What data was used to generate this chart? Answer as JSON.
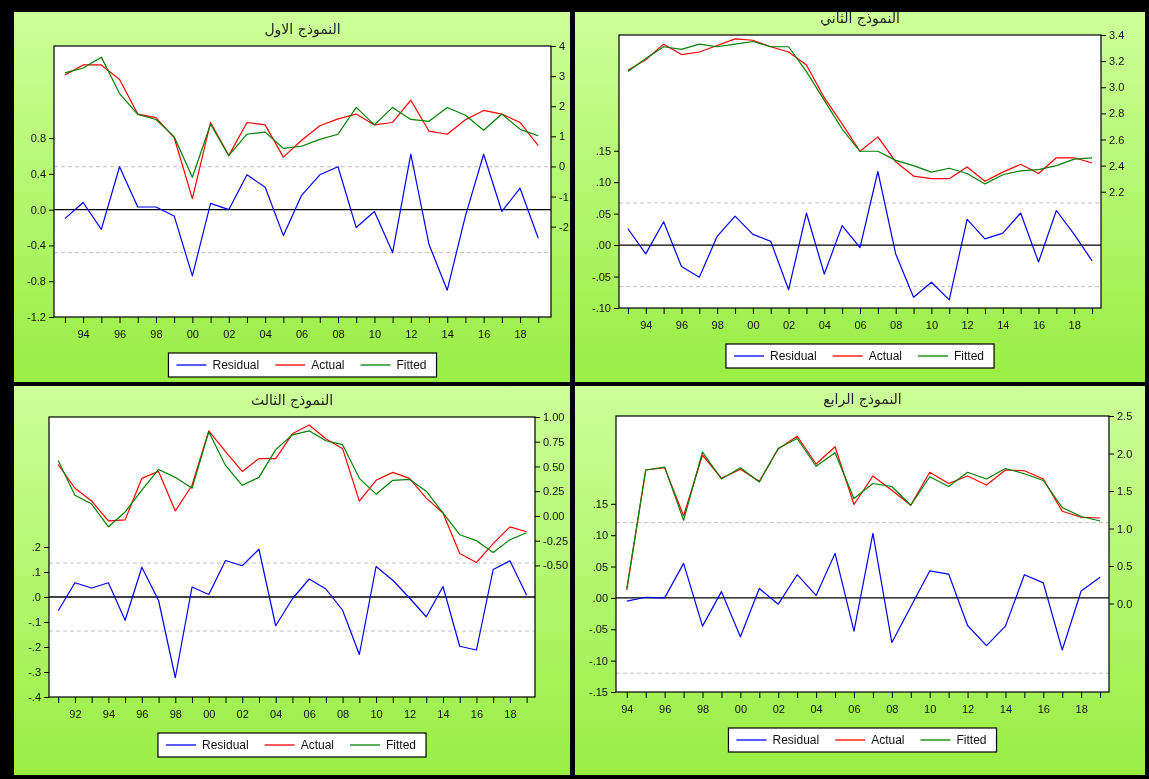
{
  "chart_data": [
    {
      "type": "line",
      "title": "النموذج الاول",
      "legend": "bottom",
      "x": [
        1993,
        1994,
        1995,
        1996,
        1997,
        1998,
        1999,
        2000,
        2001,
        2002,
        2003,
        2004,
        2005,
        2006,
        2007,
        2008,
        2009,
        2010,
        2011,
        2012,
        2013,
        2014,
        2015,
        2016,
        2017,
        2018,
        2019
      ],
      "xlim": [
        1992.4,
        2019.7
      ],
      "xticks": [
        {
          "value": 1993,
          "label": null
        },
        {
          "value": 1994,
          "label": "94"
        },
        {
          "value": 1995,
          "label": null
        },
        {
          "value": 1996,
          "label": "96"
        },
        {
          "value": 1997,
          "label": null
        },
        {
          "value": 1998,
          "label": "98"
        },
        {
          "value": 1999,
          "label": null
        },
        {
          "value": 2000,
          "label": "00"
        },
        {
          "value": 2001,
          "label": null
        },
        {
          "value": 2002,
          "label": "02"
        },
        {
          "value": 2003,
          "label": null
        },
        {
          "value": 2004,
          "label": "04"
        },
        {
          "value": 2005,
          "label": null
        },
        {
          "value": 2006,
          "label": "06"
        },
        {
          "value": 2007,
          "label": null
        },
        {
          "value": 2008,
          "label": "08"
        },
        {
          "value": 2009,
          "label": null
        },
        {
          "value": 2010,
          "label": "10"
        },
        {
          "value": 2011,
          "label": null
        },
        {
          "value": 2012,
          "label": "12"
        },
        {
          "value": 2013,
          "label": null
        },
        {
          "value": 2014,
          "label": "14"
        },
        {
          "value": 2015,
          "label": null
        },
        {
          "value": 2016,
          "label": "16"
        },
        {
          "value": 2017,
          "label": null
        },
        {
          "value": 2018,
          "label": "18"
        },
        {
          "value": 2019,
          "label": null
        }
      ],
      "ylim": [
        -1.2,
        1.83
      ],
      "yticks": [
        {
          "value": 0.8,
          "label": "0.8"
        },
        {
          "value": 0.4,
          "label": "0.4"
        },
        {
          "value": 0,
          "label": "0.0"
        },
        {
          "value": -0.4,
          "label": "-0.4"
        },
        {
          "value": -0.8,
          "label": "-0.8"
        },
        {
          "value": -1.2,
          "label": "-1.2"
        }
      ],
      "y2lim": [
        -5,
        4
      ],
      "y2ticks": [
        4,
        3,
        2,
        1,
        0,
        -1,
        {
          "value": -2,
          "label": "-2"
        }
      ],
      "ref_lines": [
        {
          "axis": "y",
          "value": 0,
          "color": "#000000",
          "line_style": "solid"
        },
        {
          "axis": "y",
          "value": 0.48,
          "color": "#c0c0c0",
          "line_style": "dashed"
        },
        {
          "axis": "y",
          "value": -0.48,
          "color": "#c0c0c0",
          "line_style": "dashed"
        }
      ],
      "series": [
        {
          "name": "Residual",
          "color": "#0000ff",
          "values": [
            -0.1,
            0.08,
            -0.22,
            0.48,
            0.03,
            0.03,
            -0.07,
            -0.74,
            0.07,
            0.0,
            0.39,
            0.25,
            -0.29,
            0.16,
            0.39,
            0.48,
            -0.2,
            -0.02,
            -0.48,
            0.62,
            -0.39,
            -0.9,
            -0.07,
            0.62,
            -0.02,
            0.24,
            -0.32
          ]
        },
        {
          "name": "Actual",
          "color": "#ff0000",
          "axis": "y2",
          "values": [
            3.04,
            3.37,
            3.37,
            2.89,
            1.74,
            1.62,
            0.96,
            -1.07,
            1.46,
            0.36,
            1.46,
            1.38,
            0.31,
            0.87,
            1.35,
            1.58,
            1.74,
            1.38,
            1.46,
            2.2,
            1.17,
            1.07,
            1.55,
            1.86,
            1.74,
            1.46,
            0.69
          ]
        },
        {
          "name": "Fitted",
          "color": "#008000",
          "axis": "y2",
          "values": [
            3.11,
            3.27,
            3.63,
            2.42,
            1.73,
            1.56,
            0.99,
            -0.36,
            1.4,
            0.36,
            1.07,
            1.14,
            0.6,
            0.67,
            0.9,
            1.07,
            1.96,
            1.38,
            1.96,
            1.56,
            1.5,
            1.96,
            1.7,
            1.2,
            1.74,
            1.23,
            1.02
          ]
        }
      ]
    },
    {
      "type": "line",
      "title": "النموذج الثاني",
      "legend": "bottom",
      "x": [
        1993,
        1994,
        1995,
        1996,
        1997,
        1998,
        1999,
        2000,
        2001,
        2002,
        2003,
        2004,
        2005,
        2006,
        2007,
        2008,
        2009,
        2010,
        2011,
        2012,
        2013,
        2014,
        2015,
        2016,
        2017,
        2018,
        2019
      ],
      "xlim": [
        1992.5,
        2019.5
      ],
      "xticks": [
        {
          "value": 1993,
          "label": null
        },
        {
          "value": 1994,
          "label": "94"
        },
        {
          "value": 1995,
          "label": null
        },
        {
          "value": 1996,
          "label": "96"
        },
        {
          "value": 1997,
          "label": null
        },
        {
          "value": 1998,
          "label": "98"
        },
        {
          "value": 1999,
          "label": null
        },
        {
          "value": 2000,
          "label": "00"
        },
        {
          "value": 2001,
          "label": null
        },
        {
          "value": 2002,
          "label": "02"
        },
        {
          "value": 2003,
          "label": null
        },
        {
          "value": 2004,
          "label": "04"
        },
        {
          "value": 2005,
          "label": null
        },
        {
          "value": 2006,
          "label": "06"
        },
        {
          "value": 2007,
          "label": null
        },
        {
          "value": 2008,
          "label": "08"
        },
        {
          "value": 2009,
          "label": null
        },
        {
          "value": 2010,
          "label": "10"
        },
        {
          "value": 2011,
          "label": null
        },
        {
          "value": 2012,
          "label": "12"
        },
        {
          "value": 2013,
          "label": null
        },
        {
          "value": 2014,
          "label": "14"
        },
        {
          "value": 2015,
          "label": null
        },
        {
          "value": 2016,
          "label": "16"
        },
        {
          "value": 2017,
          "label": null
        },
        {
          "value": 2018,
          "label": "18"
        },
        {
          "value": 2019,
          "label": null
        }
      ],
      "ylim": [
        -0.1,
        0.334
      ],
      "yticks": [
        {
          "value": 0.15,
          "label": ".15"
        },
        {
          "value": 0.1,
          "label": ".10"
        },
        {
          "value": 0.05,
          "label": ".05"
        },
        {
          "value": 0,
          "label": ".00"
        },
        {
          "value": -0.05,
          "label": "-.05"
        },
        {
          "value": -0.1,
          "label": "-.10"
        }
      ],
      "y2lim": [
        1.31,
        3.4
      ],
      "y2ticks": [
        {
          "value": 3.4,
          "label": "3.4"
        },
        {
          "value": 3.2,
          "label": "3.2"
        },
        {
          "value": 3.0,
          "label": "3.0"
        },
        {
          "value": 2.8,
          "label": "2.8"
        },
        {
          "value": 2.6,
          "label": "2.6"
        },
        {
          "value": 2.4,
          "label": "2.4"
        },
        {
          "value": 2.2,
          "label": "2.2"
        }
      ],
      "ref_lines": [
        {
          "axis": "y",
          "value": 0,
          "color": "#000000",
          "line_style": "solid"
        },
        {
          "axis": "y",
          "value": 0.067,
          "color": "#c0c0c0",
          "line_style": "dashed"
        },
        {
          "axis": "y",
          "value": -0.066,
          "color": "#c0c0c0",
          "line_style": "dashed"
        }
      ],
      "series": [
        {
          "name": "Residual",
          "color": "#0000ff",
          "values": [
            0.026,
            -0.014,
            0.037,
            -0.034,
            -0.051,
            0.014,
            0.046,
            0.017,
            0.006,
            -0.071,
            0.051,
            -0.046,
            0.031,
            -0.004,
            0.117,
            -0.014,
            -0.083,
            -0.059,
            -0.087,
            0.041,
            0.01,
            0.019,
            0.051,
            -0.027,
            0.055,
            0.017,
            -0.025
          ]
        },
        {
          "name": "Actual",
          "color": "#ff0000",
          "axis": "y2",
          "values": [
            3.13,
            3.21,
            3.33,
            3.25,
            3.27,
            3.32,
            3.37,
            3.36,
            3.31,
            3.27,
            3.17,
            2.92,
            2.72,
            2.51,
            2.62,
            2.43,
            2.32,
            2.3,
            2.3,
            2.39,
            2.28,
            2.35,
            2.41,
            2.34,
            2.46,
            2.46,
            2.42
          ]
        },
        {
          "name": "Fitted",
          "color": "#008000",
          "axis": "y2",
          "values": [
            3.12,
            3.22,
            3.31,
            3.29,
            3.33,
            3.31,
            3.33,
            3.35,
            3.31,
            3.31,
            3.12,
            2.9,
            2.68,
            2.51,
            2.51,
            2.44,
            2.4,
            2.35,
            2.38,
            2.34,
            2.26,
            2.33,
            2.36,
            2.37,
            2.4,
            2.45,
            2.46
          ]
        }
      ]
    },
    {
      "type": "line",
      "title": "النموذج الثالث",
      "legend": "bottom",
      "x": [
        1991,
        1992,
        1993,
        1994,
        1995,
        1996,
        1997,
        1998,
        1999,
        2000,
        2001,
        2002,
        2003,
        2004,
        2005,
        2006,
        2007,
        2008,
        2009,
        2010,
        2011,
        2012,
        2013,
        2014,
        2015,
        2016,
        2017,
        2018,
        2019
      ],
      "xlim": [
        1990.45,
        2019.5
      ],
      "xticks": [
        {
          "value": 1991,
          "label": null
        },
        {
          "value": 1992,
          "label": "92"
        },
        {
          "value": 1993,
          "label": null
        },
        {
          "value": 1994,
          "label": "94"
        },
        {
          "value": 1995,
          "label": null
        },
        {
          "value": 1996,
          "label": "96"
        },
        {
          "value": 1997,
          "label": null
        },
        {
          "value": 1998,
          "label": "98"
        },
        {
          "value": 1999,
          "label": null
        },
        {
          "value": 2000,
          "label": "00"
        },
        {
          "value": 2001,
          "label": null
        },
        {
          "value": 2002,
          "label": "02"
        },
        {
          "value": 2003,
          "label": null
        },
        {
          "value": 2004,
          "label": "04"
        },
        {
          "value": 2005,
          "label": null
        },
        {
          "value": 2006,
          "label": "06"
        },
        {
          "value": 2007,
          "label": null
        },
        {
          "value": 2008,
          "label": "08"
        },
        {
          "value": 2009,
          "label": null
        },
        {
          "value": 2010,
          "label": "10"
        },
        {
          "value": 2011,
          "label": null
        },
        {
          "value": 2012,
          "label": "12"
        },
        {
          "value": 2013,
          "label": null
        },
        {
          "value": 2014,
          "label": "14"
        },
        {
          "value": 2015,
          "label": null
        },
        {
          "value": 2016,
          "label": "16"
        },
        {
          "value": 2017,
          "label": null
        },
        {
          "value": 2018,
          "label": "18"
        },
        {
          "value": 2019,
          "label": null
        }
      ],
      "ylim": [
        -0.4,
        0.72
      ],
      "yticks": [
        {
          "value": 0.2,
          "label": ".2"
        },
        {
          "value": 0.1,
          "label": ".1"
        },
        {
          "value": 0,
          "label": ".0"
        },
        {
          "value": -0.1,
          "label": "-.1"
        },
        {
          "value": -0.2,
          "label": "-.2"
        },
        {
          "value": -0.3,
          "label": "-.3"
        },
        {
          "value": -0.4,
          "label": "-.4"
        }
      ],
      "y2lim": [
        -1.83,
        1.0
      ],
      "y2ticks": [
        {
          "value": 1,
          "label": "1.00"
        },
        {
          "value": 0.75,
          "label": "0.75"
        },
        {
          "value": 0.5,
          "label": "0.50"
        },
        {
          "value": 0.25,
          "label": "0.25"
        },
        {
          "value": 0,
          "label": "0.00"
        },
        {
          "value": -0.25,
          "label": "-0.25"
        },
        {
          "value": -0.5,
          "label": "-0.50"
        }
      ],
      "ref_lines": [
        {
          "axis": "y",
          "value": 0,
          "color": "#000000",
          "line_style": "solid"
        },
        {
          "axis": "y",
          "value": 0.136,
          "color": "#c0c0c0",
          "line_style": "dashed"
        },
        {
          "axis": "y",
          "value": -0.136,
          "color": "#c0c0c0",
          "line_style": "dashed"
        }
      ],
      "series": [
        {
          "name": "Residual",
          "color": "#0000ff",
          "values": [
            -0.055,
            0.057,
            0.036,
            0.057,
            -0.093,
            0.119,
            -0.014,
            -0.323,
            0.04,
            0.01,
            0.146,
            0.125,
            0.191,
            -0.115,
            -0.007,
            0.072,
            0.032,
            -0.053,
            -0.23,
            0.122,
            0.067,
            -0.004,
            -0.079,
            0.042,
            -0.197,
            -0.212,
            0.11,
            0.145,
            0.007
          ]
        },
        {
          "name": "Actual",
          "color": "#ff0000",
          "axis": "y2",
          "values": [
            0.52,
            0.28,
            0.15,
            -0.05,
            -0.04,
            0.38,
            0.45,
            0.05,
            0.31,
            0.86,
            0.65,
            0.45,
            0.58,
            0.58,
            0.83,
            0.92,
            0.78,
            0.68,
            0.15,
            0.36,
            0.44,
            0.38,
            0.18,
            0.03,
            -0.38,
            -0.47,
            -0.28,
            -0.11,
            -0.16
          ]
        },
        {
          "name": "Fitted",
          "color": "#008000",
          "axis": "y2",
          "values": [
            0.56,
            0.21,
            0.12,
            -0.11,
            0.04,
            0.26,
            0.47,
            0.39,
            0.28,
            0.85,
            0.51,
            0.31,
            0.39,
            0.67,
            0.82,
            0.86,
            0.76,
            0.72,
            0.38,
            0.22,
            0.36,
            0.37,
            0.25,
            0.03,
            -0.19,
            -0.25,
            -0.37,
            -0.24,
            -0.17
          ]
        }
      ]
    },
    {
      "type": "line",
      "title": "النموذج الرابع",
      "legend": "bottom",
      "x": [
        1994,
        1995,
        1996,
        1997,
        1998,
        1999,
        2000,
        2001,
        2002,
        2003,
        2004,
        2005,
        2006,
        2007,
        2008,
        2009,
        2010,
        2011,
        2012,
        2013,
        2014,
        2015,
        2016,
        2017,
        2018,
        2019
      ],
      "xlim": [
        1993.43,
        2019.47
      ],
      "xticks": [
        {
          "value": 1994,
          "label": "94"
        },
        {
          "value": 1995,
          "label": null
        },
        {
          "value": 1996,
          "label": "96"
        },
        {
          "value": 1997,
          "label": null
        },
        {
          "value": 1998,
          "label": "98"
        },
        {
          "value": 1999,
          "label": null
        },
        {
          "value": 2000,
          "label": "00"
        },
        {
          "value": 2001,
          "label": null
        },
        {
          "value": 2002,
          "label": "02"
        },
        {
          "value": 2003,
          "label": null
        },
        {
          "value": 2004,
          "label": "04"
        },
        {
          "value": 2005,
          "label": null
        },
        {
          "value": 2006,
          "label": "06"
        },
        {
          "value": 2007,
          "label": null
        },
        {
          "value": 2008,
          "label": "08"
        },
        {
          "value": 2009,
          "label": null
        },
        {
          "value": 2010,
          "label": "10"
        },
        {
          "value": 2011,
          "label": null
        },
        {
          "value": 2012,
          "label": "12"
        },
        {
          "value": 2013,
          "label": null
        },
        {
          "value": 2014,
          "label": "14"
        },
        {
          "value": 2015,
          "label": null
        },
        {
          "value": 2016,
          "label": "16"
        },
        {
          "value": 2017,
          "label": null
        },
        {
          "value": 2018,
          "label": "18"
        },
        {
          "value": 2019,
          "label": null
        }
      ],
      "ylim": [
        -0.15,
        0.29
      ],
      "yticks": [
        {
          "value": 0.15,
          "label": ".15"
        },
        {
          "value": 0.1,
          "label": ".10"
        },
        {
          "value": 0.05,
          "label": ".05"
        },
        {
          "value": 0,
          "label": ".00"
        },
        {
          "value": -0.05,
          "label": "-.05"
        },
        {
          "value": -0.1,
          "label": "-.10"
        },
        {
          "value": -0.15,
          "label": "-.15"
        }
      ],
      "y2lim": [
        -1.18,
        2.5
      ],
      "y2ticks": [
        {
          "value": 2.5,
          "label": "2.5"
        },
        {
          "value": 2,
          "label": "2.0"
        },
        {
          "value": 1.5,
          "label": "1.5"
        },
        {
          "value": 1,
          "label": "1.0"
        },
        {
          "value": 0.5,
          "label": "0.5"
        },
        {
          "value": 0,
          "label": "0.0"
        }
      ],
      "ref_lines": [
        {
          "axis": "y",
          "value": 0,
          "color": "#000000",
          "line_style": "solid"
        },
        {
          "axis": "y",
          "value": 0.12,
          "color": "#c0c0c0",
          "line_style": "dashed"
        },
        {
          "axis": "y",
          "value": -0.12,
          "color": "#c0c0c0",
          "line_style": "dashed"
        }
      ],
      "series": [
        {
          "name": "Residual",
          "color": "#0000ff",
          "values": [
            -0.005,
            0.001,
            0.0,
            0.055,
            -0.045,
            0.01,
            -0.062,
            0.015,
            -0.01,
            0.037,
            0.004,
            0.071,
            -0.053,
            0.103,
            -0.071,
            -0.014,
            0.043,
            0.038,
            -0.044,
            -0.076,
            -0.045,
            0.037,
            0.024,
            -0.083,
            0.011,
            0.033
          ]
        },
        {
          "name": "Actual",
          "color": "#ff0000",
          "axis": "y2",
          "values": [
            0.18,
            1.78,
            1.81,
            1.17,
            1.98,
            1.67,
            1.79,
            1.63,
            2.06,
            2.23,
            1.86,
            2.09,
            1.32,
            1.7,
            1.51,
            1.31,
            1.75,
            1.6,
            1.7,
            1.58,
            1.78,
            1.77,
            1.66,
            1.23,
            1.15,
            1.14
          ]
        },
        {
          "name": "Fitted",
          "color": "#008000",
          "axis": "y2",
          "values": [
            0.2,
            1.78,
            1.82,
            1.11,
            2.02,
            1.66,
            1.81,
            1.62,
            2.07,
            2.2,
            1.83,
            2.01,
            1.4,
            1.6,
            1.56,
            1.31,
            1.69,
            1.56,
            1.75,
            1.66,
            1.8,
            1.73,
            1.64,
            1.28,
            1.16,
            1.1
          ]
        }
      ]
    }
  ]
}
